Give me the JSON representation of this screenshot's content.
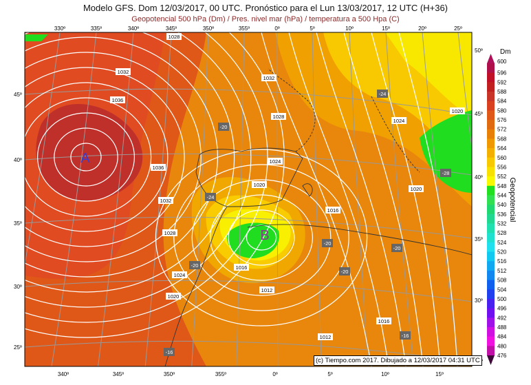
{
  "header": {
    "title": "Modelo GFS. Dom 12/03/2017, 00 UTC. Pronóstico para el Lun 13/03/2017, 12 UTC (H+36)",
    "subtitle": "Geopotencial 500 hPa (Dm) / Pres. nivel mar (hPa) / temperatura a 500 Hpa (C)"
  },
  "map": {
    "top_lon_labels": [
      "330º",
      "335º",
      "340º",
      "345º",
      "350º",
      "355º",
      "0º",
      "5º",
      "10º",
      "15º",
      "20º",
      "25º"
    ],
    "bottom_lon_labels": [
      "340º",
      "345º",
      "350º",
      "355º",
      "0º",
      "5º",
      "10º",
      "15º"
    ],
    "left_lat_labels": [
      "45º",
      "40º",
      "35º",
      "30º",
      "25º"
    ],
    "right_lat_labels": [
      "50º",
      "45º",
      "40º",
      "35º",
      "30º",
      "25º"
    ],
    "pressure_centers": [
      {
        "label": "A",
        "color": "#3a3ad0"
      },
      {
        "label": "B",
        "color": "#8a3a8a"
      }
    ],
    "isobar_labels": [
      "1028",
      "1032",
      "1036",
      "1036",
      "1032",
      "1028",
      "1024",
      "1020",
      "1032",
      "1028",
      "1024",
      "1020",
      "1016",
      "1016",
      "1012",
      "1012",
      "1016",
      "1020",
      "1020",
      "1024"
    ],
    "temperature_labels": [
      "-20",
      "-24",
      "-20",
      "-20",
      "-20",
      "-20",
      "-16",
      "-16",
      "-24",
      "-28"
    ],
    "credit": "(c) Tiempo.com 2017. Dibujado a 12/03/2017 04:31 UTC"
  },
  "colorbar": {
    "unit": "Dm",
    "label": "Geopotencial",
    "values": [
      600,
      596,
      592,
      588,
      584,
      580,
      576,
      572,
      568,
      564,
      560,
      556,
      552,
      548,
      544,
      540,
      536,
      532,
      528,
      524,
      520,
      516,
      512,
      508,
      504,
      500,
      496,
      492,
      488,
      484,
      480,
      476
    ],
    "colors": [
      "#b0104a",
      "#c01028",
      "#c02020",
      "#c83428",
      "#d84020",
      "#e05818",
      "#e06a10",
      "#e88008",
      "#f09800",
      "#f4b000",
      "#f8c800",
      "#f8e000",
      "#f8f800",
      "#20e020",
      "#30e050",
      "#20d870",
      "#20d890",
      "#20e0b0",
      "#20e0d0",
      "#20e0f0",
      "#10c8f0",
      "#10a8f0",
      "#1088f0",
      "#1060f0",
      "#2040f0",
      "#4820f0",
      "#7010f0",
      "#a010e8",
      "#d010e0",
      "#f010e0",
      "#c010a8",
      "#901080",
      "#501050"
    ],
    "top_color": "#b0105a",
    "bottom_color": "#400838"
  }
}
